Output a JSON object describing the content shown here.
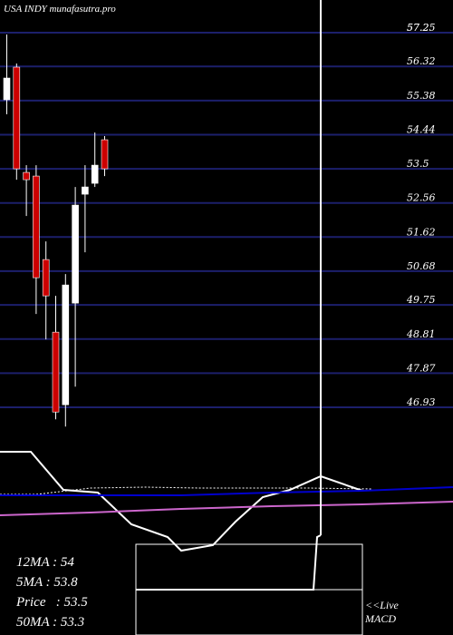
{
  "title": "USA INDY munafasutra.pro",
  "price_axis": {
    "ticks": [
      "57.25",
      "57.2",
      "56.32",
      "55.38",
      "54.44",
      "53.5",
      "52.56",
      "51.62",
      "50.68",
      "49.75",
      "48.81",
      "47.87",
      "46.93"
    ]
  },
  "stats": {
    "ma12": "12MA : 54",
    "ma5": "5MA : 53.8",
    "price": "Price   : 53.5",
    "ma50": "50MA : 53.3"
  },
  "macd_label": {
    "line1": "<<Live",
    "line2": "MACD"
  },
  "colors": {
    "background": "#000000",
    "gridline": "#1c1f6b",
    "up_candle": "#ffffff",
    "down_candle": "#cc0000",
    "ma_fast": "#ffffff",
    "ma_slow": "#0000cc",
    "ma_long": "#cc66cc",
    "macd": "#ffffff"
  },
  "chart_data": {
    "type": "candlestick",
    "title": "USA INDY munafasutra.pro",
    "ylim": [
      46.5,
      57.4
    ],
    "y_ticks": [
      57.25,
      56.32,
      55.38,
      54.44,
      53.5,
      52.56,
      51.62,
      50.68,
      49.75,
      48.81,
      47.87,
      46.93
    ],
    "grid": true,
    "candles": [
      {
        "open": 55.4,
        "close": 56.0,
        "high": 57.2,
        "low": 55.0,
        "color": "up"
      },
      {
        "open": 56.3,
        "close": 53.5,
        "high": 56.4,
        "low": 53.2,
        "color": "down"
      },
      {
        "open": 53.2,
        "close": 53.4,
        "high": 53.6,
        "low": 52.2,
        "color": "down"
      },
      {
        "open": 53.3,
        "close": 50.5,
        "high": 53.6,
        "low": 49.5,
        "color": "down"
      },
      {
        "open": 51.0,
        "close": 50.0,
        "high": 51.5,
        "low": 48.8,
        "color": "down"
      },
      {
        "open": 49.0,
        "close": 46.8,
        "high": 50.0,
        "low": 46.6,
        "color": "down"
      },
      {
        "open": 47.0,
        "close": 50.3,
        "high": 50.6,
        "low": 46.4,
        "color": "up"
      },
      {
        "open": 49.8,
        "close": 52.5,
        "high": 53.0,
        "low": 47.5,
        "color": "up"
      },
      {
        "open": 52.8,
        "close": 53.0,
        "high": 53.6,
        "low": 51.2,
        "color": "up"
      },
      {
        "open": 53.1,
        "close": 53.6,
        "high": 54.5,
        "low": 53.0,
        "color": "up"
      },
      {
        "open": 54.3,
        "close": 53.5,
        "high": 54.4,
        "low": 53.3,
        "color": "down"
      }
    ],
    "moving_averages": [
      {
        "name": "12MA",
        "value": 54
      },
      {
        "name": "5MA",
        "value": 53.8
      },
      {
        "name": "50MA",
        "value": 53.3
      }
    ],
    "price": 53.5
  }
}
